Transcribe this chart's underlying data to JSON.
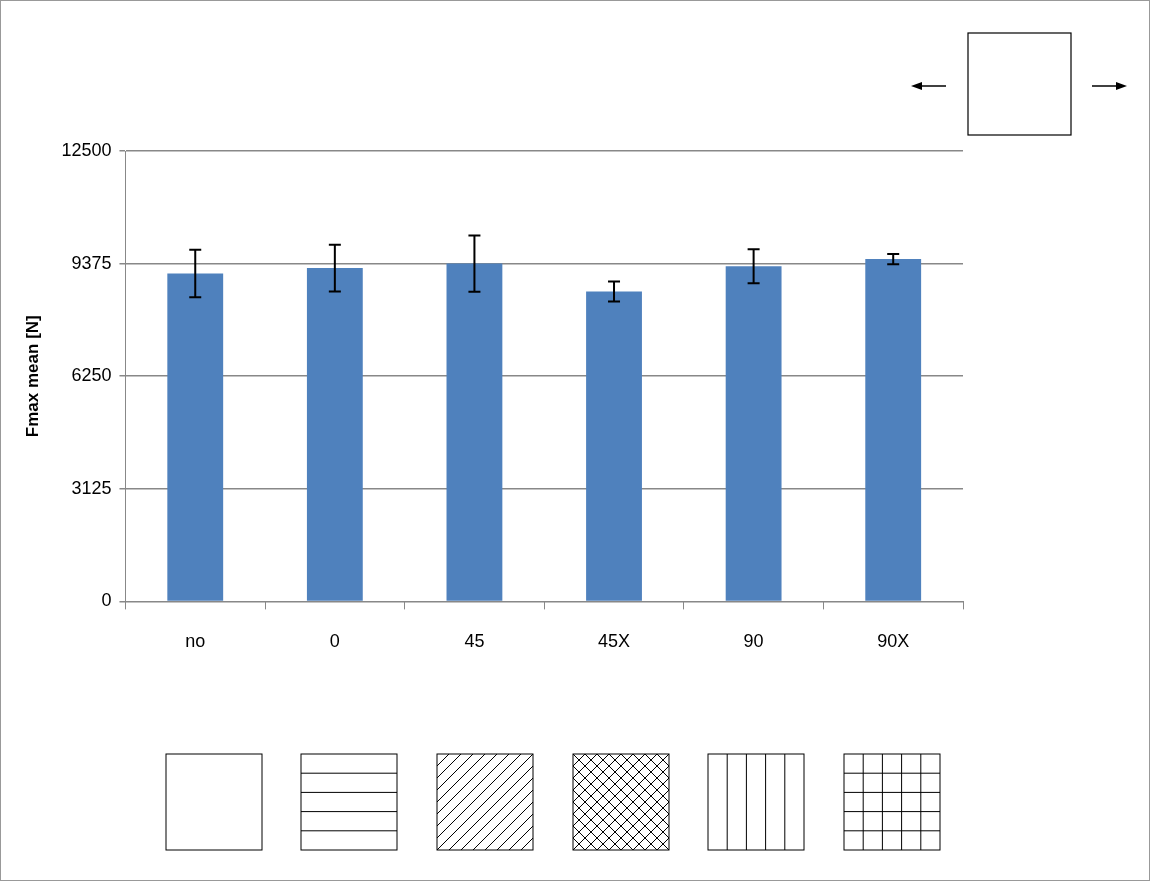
{
  "chart_data": {
    "type": "bar",
    "ylabel": "Fmax mean [N]",
    "categories": [
      "no",
      "0",
      "45",
      "45X",
      "90",
      "90X"
    ],
    "values": [
      9100,
      9250,
      9375,
      8600,
      9300,
      9500
    ],
    "errors": [
      660,
      650,
      780,
      280,
      470,
      140
    ],
    "color": "#4f81bd",
    "ylim": [
      0,
      12500
    ],
    "yticks": [
      0,
      3125,
      6250,
      9375,
      12500
    ],
    "grid": "y",
    "legend": false
  }
}
